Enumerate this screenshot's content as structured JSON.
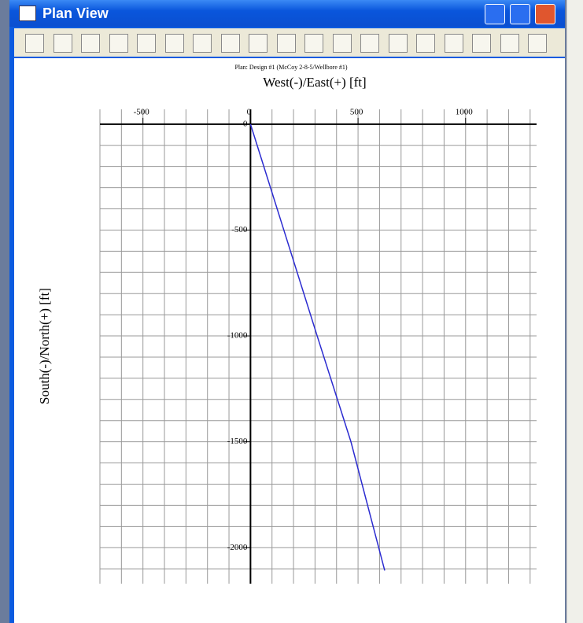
{
  "window": {
    "title": "Plan View"
  },
  "chart_data": {
    "type": "line",
    "title": "Plan: Design #1 (McCoy 2-8-5/Wellbore #1)",
    "xlabel": "West(-)/East(+) [ft]",
    "ylabel": "South(-)/North(+) [ft]",
    "x": [
      0,
      155,
      310,
      467,
      624
    ],
    "series": [
      {
        "color": "#2b2bd0",
        "values": [
          0,
          -500,
          -1000,
          -1500,
          -2108
        ]
      }
    ],
    "xlim": [
      -700,
      1330
    ],
    "ylim": [
      -2170,
      70
    ],
    "xticks": [
      -500,
      0,
      500,
      1000
    ],
    "yticks": [
      0,
      -500,
      -1000,
      -1500,
      -2000
    ],
    "xgrid": [
      -700,
      -600,
      -500,
      -400,
      -300,
      -200,
      -100,
      0,
      100,
      200,
      300,
      400,
      500,
      600,
      700,
      800,
      900,
      1000,
      1100,
      1200,
      1300
    ],
    "ygrid": [
      0,
      -100,
      -200,
      -300,
      -400,
      -500,
      -600,
      -700,
      -800,
      -900,
      -1000,
      -1100,
      -1200,
      -1300,
      -1400,
      -1500,
      -1600,
      -1700,
      -1800,
      -1900,
      -2000,
      -2100
    ],
    "grid": true
  }
}
